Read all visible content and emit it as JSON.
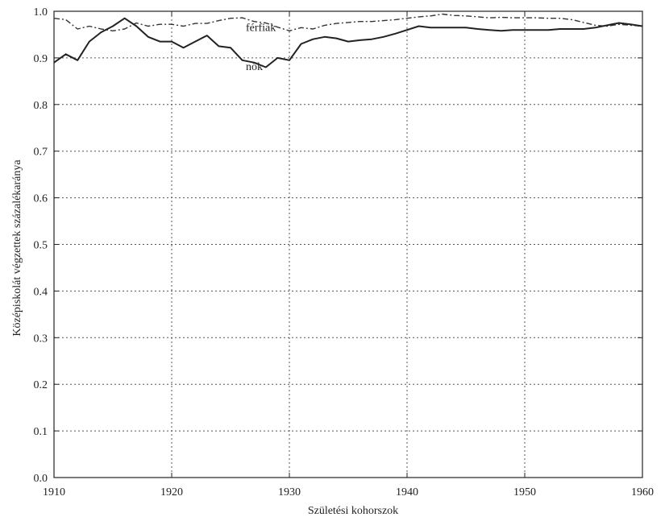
{
  "chart_data": {
    "type": "line",
    "xlabel": "Születési kohorszok",
    "ylabel": "Középiskolát végzettek százalékaránya",
    "xlim": [
      1910,
      1960
    ],
    "ylim": [
      0.0,
      1.0
    ],
    "xticks": [
      1910,
      1920,
      1930,
      1940,
      1950,
      1960
    ],
    "yticks": [
      0.0,
      0.1,
      0.2,
      0.3,
      0.4,
      0.5,
      0.6,
      0.7,
      0.8,
      0.9,
      1.0
    ],
    "grid": true,
    "series": [
      {
        "name": "férfiak",
        "line_style": "dash-dot",
        "color": "#333333",
        "x": [
          1910,
          1911,
          1912,
          1913,
          1914,
          1915,
          1916,
          1917,
          1918,
          1919,
          1920,
          1921,
          1922,
          1923,
          1924,
          1925,
          1926,
          1927,
          1928,
          1929,
          1930,
          1931,
          1932,
          1933,
          1934,
          1935,
          1936,
          1937,
          1938,
          1939,
          1940,
          1941,
          1942,
          1943,
          1944,
          1945,
          1946,
          1947,
          1948,
          1949,
          1950,
          1951,
          1952,
          1953,
          1954,
          1955,
          1956,
          1957,
          1958,
          1959,
          1960
        ],
        "values": [
          0.985,
          0.982,
          0.962,
          0.968,
          0.962,
          0.958,
          0.962,
          0.975,
          0.968,
          0.972,
          0.972,
          0.968,
          0.974,
          0.974,
          0.98,
          0.985,
          0.986,
          0.978,
          0.975,
          0.966,
          0.958,
          0.965,
          0.962,
          0.97,
          0.974,
          0.976,
          0.978,
          0.978,
          0.98,
          0.982,
          0.985,
          0.988,
          0.99,
          0.994,
          0.991,
          0.99,
          0.988,
          0.986,
          0.987,
          0.986,
          0.986,
          0.986,
          0.985,
          0.985,
          0.982,
          0.976,
          0.97,
          0.968,
          0.972,
          0.97,
          0.968
        ]
      },
      {
        "name": "nők",
        "line_style": "solid",
        "color": "#222222",
        "x": [
          1910,
          1911,
          1912,
          1913,
          1914,
          1915,
          1916,
          1917,
          1918,
          1919,
          1920,
          1921,
          1922,
          1923,
          1924,
          1925,
          1926,
          1927,
          1928,
          1929,
          1930,
          1931,
          1932,
          1933,
          1934,
          1935,
          1936,
          1937,
          1938,
          1939,
          1940,
          1941,
          1942,
          1943,
          1944,
          1945,
          1946,
          1947,
          1948,
          1949,
          1950,
          1951,
          1952,
          1953,
          1954,
          1955,
          1956,
          1957,
          1958,
          1959,
          1960
        ],
        "values": [
          0.89,
          0.908,
          0.895,
          0.935,
          0.955,
          0.968,
          0.985,
          0.968,
          0.945,
          0.935,
          0.935,
          0.922,
          0.935,
          0.948,
          0.925,
          0.922,
          0.895,
          0.89,
          0.88,
          0.9,
          0.895,
          0.93,
          0.94,
          0.945,
          0.942,
          0.935,
          0.938,
          0.94,
          0.945,
          0.952,
          0.96,
          0.968,
          0.965,
          0.965,
          0.965,
          0.965,
          0.962,
          0.96,
          0.958,
          0.96,
          0.96,
          0.96,
          0.96,
          0.962,
          0.962,
          0.962,
          0.965,
          0.97,
          0.975,
          0.972,
          0.968
        ]
      }
    ],
    "annotations": [
      {
        "text": "férfiak",
        "x": 1926.3,
        "y": 0.958
      },
      {
        "text": "nők",
        "x": 1926.3,
        "y": 0.874
      }
    ]
  }
}
